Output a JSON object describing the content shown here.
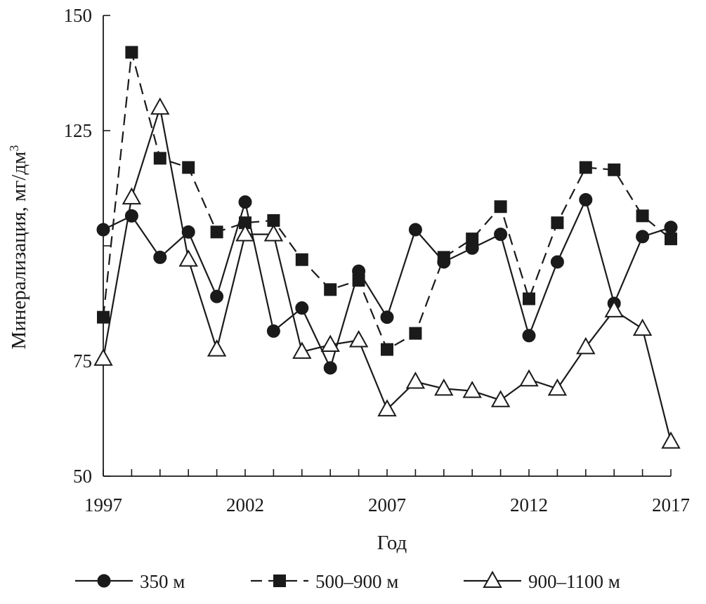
{
  "chart_data": {
    "type": "line",
    "title": "",
    "xlabel": "Год",
    "ylabel": "Минерализация, мг/дм",
    "ylabel_superscript": "3",
    "xlim": [
      1997,
      2017
    ],
    "ylim": [
      50,
      150
    ],
    "xticks": [
      1997,
      2002,
      2007,
      2012,
      2017
    ],
    "yticks": [
      50,
      75,
      125,
      150
    ],
    "grid": false,
    "legend_position": "bottom",
    "x": [
      1997,
      1998,
      1999,
      2000,
      2001,
      2002,
      2003,
      2004,
      2005,
      2006,
      2007,
      2008,
      2009,
      2010,
      2011,
      2012,
      2013,
      2014,
      2015,
      2016,
      2017
    ],
    "series": [
      {
        "name": "350 м",
        "marker": "circle",
        "dash": "solid",
        "values": [
          103.5,
          106.5,
          97.5,
          103,
          89,
          109.5,
          81.5,
          86.5,
          73.5,
          94.5,
          84.5,
          103.5,
          96.5,
          99.5,
          102.5,
          80.5,
          96.5,
          110,
          87.5,
          102,
          104
        ]
      },
      {
        "name": "500–900 м",
        "marker": "square",
        "dash": "dashed",
        "values": [
          84.5,
          142,
          119,
          117,
          103,
          105,
          105.5,
          97,
          90.5,
          92.5,
          77.5,
          81,
          97.5,
          101.5,
          108.5,
          88.5,
          105,
          117,
          116.5,
          106.5,
          101.5
        ]
      },
      {
        "name": "900–1100 м",
        "marker": "triangle",
        "dash": "solid",
        "values": [
          75.5,
          110.5,
          130,
          97,
          77.5,
          102.5,
          102.5,
          77,
          78.5,
          79.5,
          64.5,
          70.5,
          69,
          68.5,
          66.5,
          71,
          69,
          78,
          86,
          82,
          57.5
        ]
      }
    ]
  }
}
